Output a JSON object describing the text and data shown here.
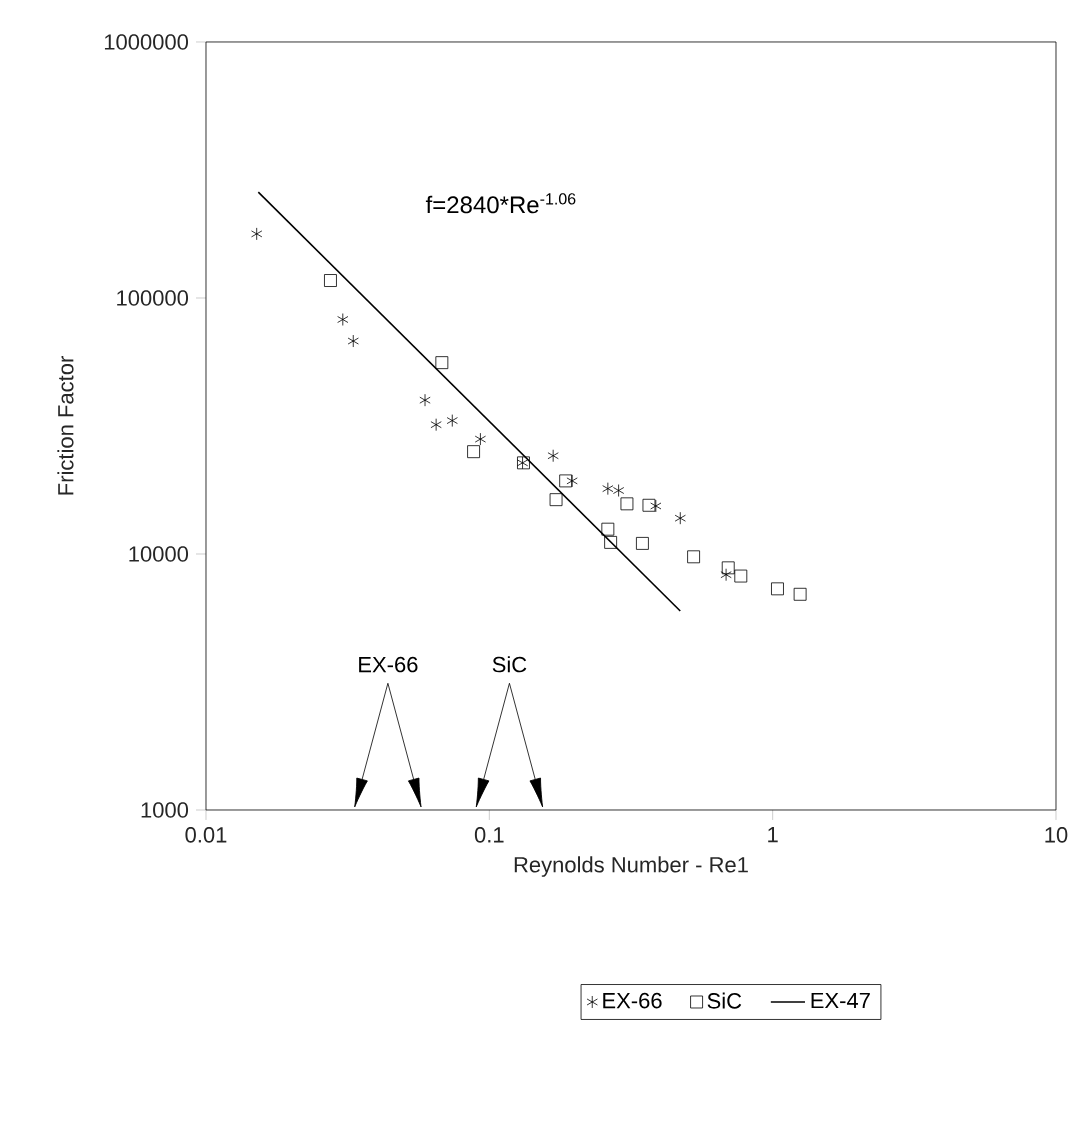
{
  "chart_data": {
    "type": "scatter",
    "xlabel": "Reynolds Number - Re1",
    "ylabel": "Friction Factor",
    "log": "xy",
    "xlim": [
      0.01,
      10
    ],
    "ylim": [
      1000,
      1000000
    ],
    "xticks": [
      0.01,
      0.1,
      1,
      10
    ],
    "yticks": [
      1000,
      10000,
      100000,
      1000000
    ],
    "grid": false,
    "legend": "bottom",
    "annotations": [
      "f=2840*Re$^{-1.06}$",
      "EX-66",
      "SiC"
    ],
    "series": [
      {
        "name": "EX-66",
        "marker": "cross",
        "color": "#000000",
        "x": [
          0.0151,
          0.0304,
          0.0331,
          0.0593,
          0.0649,
          0.074,
          0.093,
          0.131,
          0.168,
          0.196,
          0.262,
          0.286,
          0.387,
          0.472,
          0.685
        ],
        "values": [
          178000,
          82400,
          67900,
          39900,
          32000,
          33200,
          28100,
          22700,
          24200,
          19300,
          18000,
          17700,
          15400,
          13800,
          8300
        ]
      },
      {
        "name": "SiC",
        "marker": "square",
        "color": "#000000",
        "x": [
          0.0275,
          0.068,
          0.088,
          0.132,
          0.172,
          0.186,
          0.262,
          0.268,
          0.306,
          0.347,
          0.366,
          0.526,
          0.697,
          0.772,
          1.04,
          1.25
        ],
        "values": [
          117000,
          55900,
          25100,
          22700,
          16300,
          19300,
          12500,
          11100,
          15700,
          11000,
          15500,
          9750,
          8830,
          8200,
          7310,
          6960
        ]
      },
      {
        "name": "EX-47",
        "type": "line",
        "marker": "none",
        "line_style": "solid",
        "color": "#000000",
        "x": [
          0.0153,
          0.472
        ],
        "values": [
          259000,
          5990
        ]
      }
    ]
  }
}
